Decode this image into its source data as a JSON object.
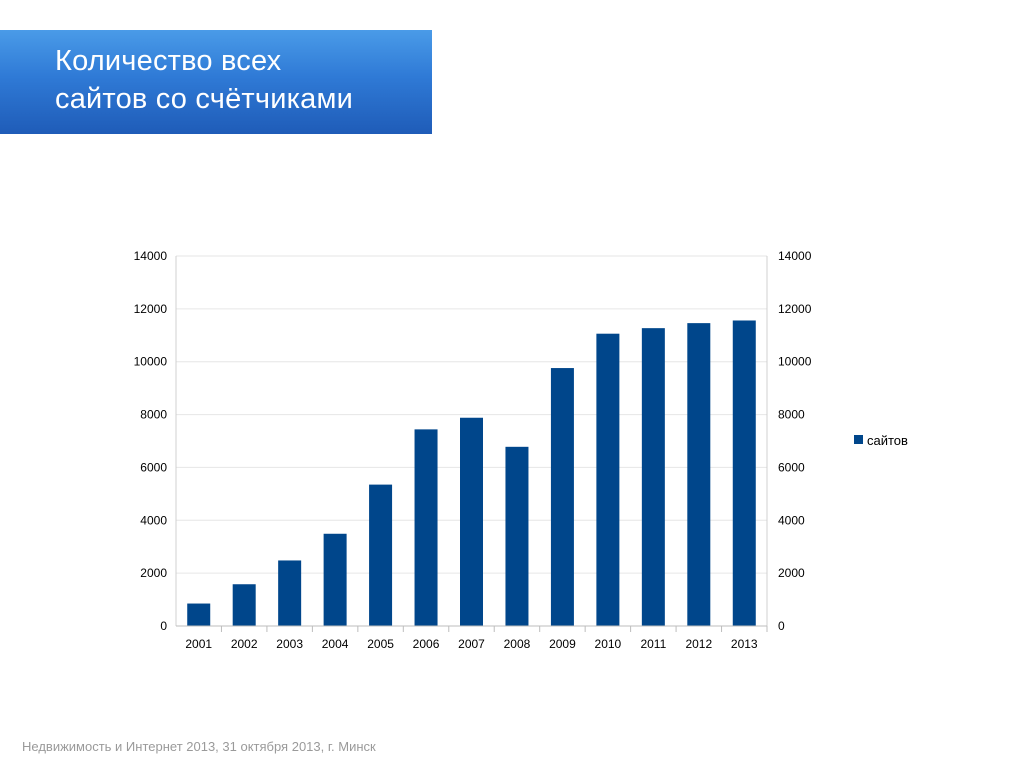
{
  "slide": {
    "title_lines": [
      "Количество всех",
      "сайтов со счётчиками"
    ],
    "footer": "Недвижимость и Интернет 2013, 31 октября 2013, г. Минск"
  },
  "colors": {
    "bar": "#00468b",
    "title_gradient_top": "#4a9be8",
    "title_gradient_bottom": "#1f5cb8",
    "gridline": "#e6e6e6",
    "footer_text": "#9a9a9a"
  },
  "chart_data": {
    "type": "bar",
    "categories": [
      "2001",
      "2002",
      "2003",
      "2004",
      "2005",
      "2006",
      "2007",
      "2008",
      "2009",
      "2010",
      "2011",
      "2012",
      "2013"
    ],
    "series": [
      {
        "name": "сайтов",
        "values": [
          850,
          1580,
          2480,
          3490,
          5350,
          7440,
          7880,
          6780,
          9760,
          11060,
          11270,
          11460,
          11560
        ]
      }
    ],
    "ylim": [
      0,
      14000
    ],
    "yticks": [
      "0",
      "2000",
      "4000",
      "6000",
      "8000",
      "10000",
      "12000",
      "14000"
    ],
    "secondary_yaxis": true,
    "grid": true,
    "legend_position": "right"
  }
}
